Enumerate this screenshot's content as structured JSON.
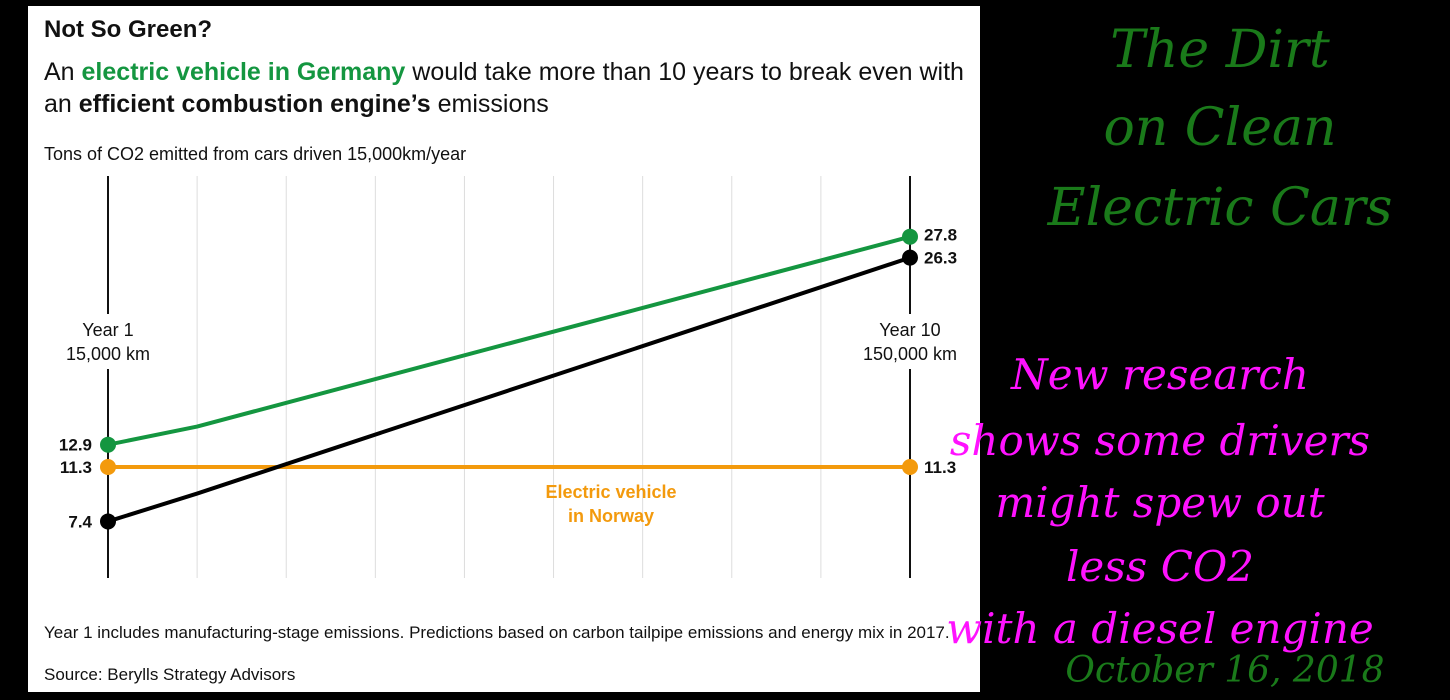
{
  "panel": {
    "title": "Not So Green?",
    "subtitle": {
      "t1": "An ",
      "h1": "electric vehicle in Germany",
      "t2": " would take more than 10 years to break even with an ",
      "h2": "efficient combustion engine’s",
      "t3": " emissions"
    },
    "unit_label": "Tons of CO2 emitted from cars driven 15,000km/year",
    "footnote": "Year 1 includes manufacturing-stage emissions. Predictions based on carbon tailpipe emissions and energy mix in 2017.",
    "source": "Source: Berylls Strategy Advisors"
  },
  "chart_data": {
    "type": "line",
    "x": [
      1,
      10
    ],
    "xlim": [
      1,
      10
    ],
    "ylim": [
      6,
      30
    ],
    "grid": true,
    "axis_labels": {
      "start_line1": "Year 1",
      "start_line2": "15,000 km",
      "end_line1": "Year 10",
      "end_line2": "150,000 km"
    },
    "series": [
      {
        "key": "ev_germany",
        "color": "#149640",
        "x": [
          1,
          2,
          10
        ],
        "values": [
          12.9,
          14.2,
          27.8
        ],
        "start_label": "12.9",
        "end_label": "27.8"
      },
      {
        "key": "combustion",
        "color": "#000000",
        "x": [
          1,
          2,
          10
        ],
        "values": [
          7.4,
          9.4,
          26.3
        ],
        "start_label": "7.4",
        "end_label": "26.3"
      },
      {
        "key": "ev_norway",
        "name": "Electric vehicle in Norway",
        "name_line1": "Electric vehicle",
        "name_line2": "in Norway",
        "color": "#f39a0d",
        "x": [
          1,
          10
        ],
        "values": [
          11.3,
          11.3
        ],
        "start_label": "11.3",
        "end_label": "11.3"
      }
    ]
  },
  "overlay": {
    "headline": [
      "The Dirt",
      "on Clean",
      "Electric Cars"
    ],
    "subhead": [
      "New research",
      "shows some drivers",
      "might spew out",
      "less CO2",
      "with a diesel engine"
    ],
    "date": "October 16, 2018",
    "headline_color": "#1a7a1a",
    "subhead_color": "#ff12ff"
  }
}
